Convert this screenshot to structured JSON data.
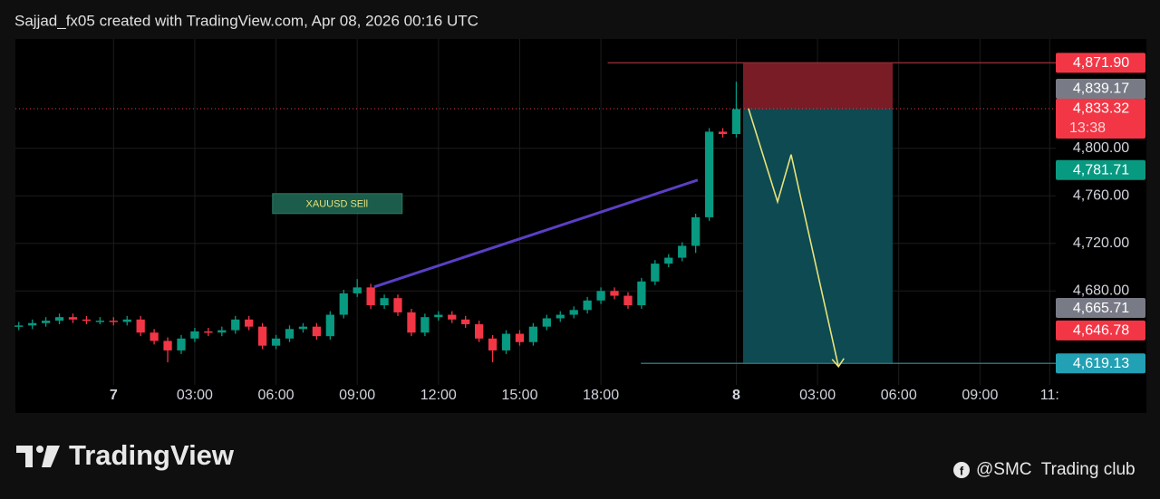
{
  "header": "Sajjad_fx05 created with TradingView.com, Apr 08, 2026 00:16 UTC",
  "chart_data": {
    "type": "candlestick",
    "x": [
      -14,
      -12,
      -10,
      -8,
      -6,
      -4,
      -2,
      0,
      2,
      4,
      6,
      8,
      10,
      12,
      14,
      16,
      18,
      20,
      22,
      24,
      26,
      28,
      30,
      32,
      34,
      36,
      38,
      40,
      42,
      44,
      46,
      48,
      50,
      52,
      54,
      56,
      58,
      60,
      62,
      64,
      66,
      68,
      70,
      72,
      74,
      76,
      78,
      80,
      82,
      84,
      86,
      88,
      90,
      92
    ],
    "open": [
      4650,
      4651,
      4653,
      4655,
      4658,
      4656,
      4655,
      4655,
      4654,
      4656,
      4645,
      4638,
      4630,
      4640,
      4646,
      4645,
      4647,
      4656,
      4650,
      4634,
      4640,
      4648,
      4650,
      4642,
      4660,
      4678,
      4683,
      4668,
      4674,
      4662,
      4645,
      4658,
      4660,
      4656,
      4652,
      4640,
      4630,
      4644,
      4637,
      4650,
      4657,
      4660,
      4664,
      4672,
      4680,
      4676,
      4668,
      4688,
      4703,
      4708,
      4718,
      4742,
      4814,
      4812
    ],
    "high": [
      4654,
      4656,
      4658,
      4661,
      4661,
      4659,
      4658,
      4658,
      4659,
      4659,
      4648,
      4641,
      4643,
      4649,
      4649,
      4650,
      4659,
      4659,
      4653,
      4643,
      4651,
      4653,
      4653,
      4663,
      4681,
      4690,
      4686,
      4677,
      4677,
      4665,
      4661,
      4663,
      4663,
      4659,
      4655,
      4643,
      4647,
      4647,
      4653,
      4660,
      4663,
      4667,
      4675,
      4683,
      4683,
      4679,
      4691,
      4706,
      4711,
      4721,
      4745,
      4817,
      4817,
      4856
    ],
    "low": [
      4647,
      4648,
      4650,
      4652,
      4653,
      4652,
      4652,
      4651,
      4651,
      4642,
      4635,
      4620,
      4627,
      4637,
      4642,
      4642,
      4644,
      4647,
      4631,
      4631,
      4637,
      4645,
      4639,
      4639,
      4657,
      4675,
      4665,
      4665,
      4659,
      4642,
      4642,
      4655,
      4653,
      4649,
      4637,
      4620,
      4627,
      4634,
      4634,
      4647,
      4654,
      4657,
      4661,
      4669,
      4673,
      4665,
      4665,
      4685,
      4700,
      4705,
      4712,
      4739,
      4809,
      4809
    ],
    "close": [
      4651,
      4653,
      4655,
      4658,
      4656,
      4655,
      4655,
      4654,
      4656,
      4645,
      4638,
      4630,
      4640,
      4646,
      4645,
      4647,
      4656,
      4650,
      4634,
      4640,
      4648,
      4650,
      4642,
      4660,
      4678,
      4683,
      4668,
      4674,
      4662,
      4645,
      4658,
      4660,
      4656,
      4652,
      4640,
      4630,
      4644,
      4637,
      4650,
      4657,
      4660,
      4664,
      4672,
      4680,
      4676,
      4668,
      4688,
      4703,
      4708,
      4718,
      4742,
      4814,
      4812,
      4833
    ],
    "up_color": "#089981",
    "down_color": "#f23645",
    "xlim": [
      -14.5,
      139.2
    ],
    "ylim": [
      4601,
      4892
    ],
    "xticks": [
      {
        "value": 0,
        "label": "7"
      },
      {
        "value": 12,
        "label": "03:00"
      },
      {
        "value": 24,
        "label": "06:00"
      },
      {
        "value": 36,
        "label": "09:00"
      },
      {
        "value": 48,
        "label": "12:00"
      },
      {
        "value": 60,
        "label": "15:00"
      },
      {
        "value": 72,
        "label": "18:00"
      },
      {
        "value": 92,
        "label": "8"
      },
      {
        "value": 104,
        "label": "03:00"
      },
      {
        "value": 116,
        "label": "06:00"
      },
      {
        "value": 128,
        "label": "09:00"
      },
      {
        "value": 138.3,
        "label": "11:"
      }
    ],
    "yticks": [
      {
        "value": 4800,
        "label": "4,800.00"
      },
      {
        "value": 4760,
        "label": "4,760.00"
      },
      {
        "value": 4720,
        "label": "4,720.00"
      },
      {
        "value": 4680,
        "label": "4,680.00"
      }
    ],
    "grid": true,
    "annotations": [
      {
        "text": "XAUUSD SEll",
        "x": 33,
        "y": 4753.5
      }
    ],
    "trendline": {
      "x": [
        38.5,
        86.3
      ],
      "y": [
        4683.4,
        4773.3
      ],
      "color": "#5b3fc4"
    },
    "path": {
      "x": [
        93.8,
        98.1,
        100.1,
        107.1
      ],
      "y": [
        4833.5,
        4755,
        4794.7,
        4616.4
      ],
      "color": "#e8e27a"
    },
    "position": {
      "x": [
        93.0,
        115.1
      ],
      "stop": 4871.9,
      "entry": 4833.32,
      "target": 4619.13,
      "stop_line_start": 73,
      "target_line_start": 77.9
    },
    "price_labels": [
      {
        "value": 4871.9,
        "label": "4,871.90",
        "color": "#f23645"
      },
      {
        "value": 4839.17,
        "label": "4,839.17",
        "color": "#787b86"
      },
      {
        "value": 4833.32,
        "label": "4,833.32",
        "sublabel": "13:38",
        "color": "#f23645"
      },
      {
        "value": 4781.71,
        "label": "4,781.71",
        "color": "#089981"
      },
      {
        "value": 4665.71,
        "label": "4,665.71",
        "color": "#787b86"
      },
      {
        "value": 4646.78,
        "label": "4,646.78",
        "color": "#f23645"
      },
      {
        "value": 4619.13,
        "label": "4,619.13",
        "color": "#22a0b4"
      }
    ]
  },
  "footer": {
    "brand": "TradingView",
    "credit": "@SMC  Trading club"
  }
}
